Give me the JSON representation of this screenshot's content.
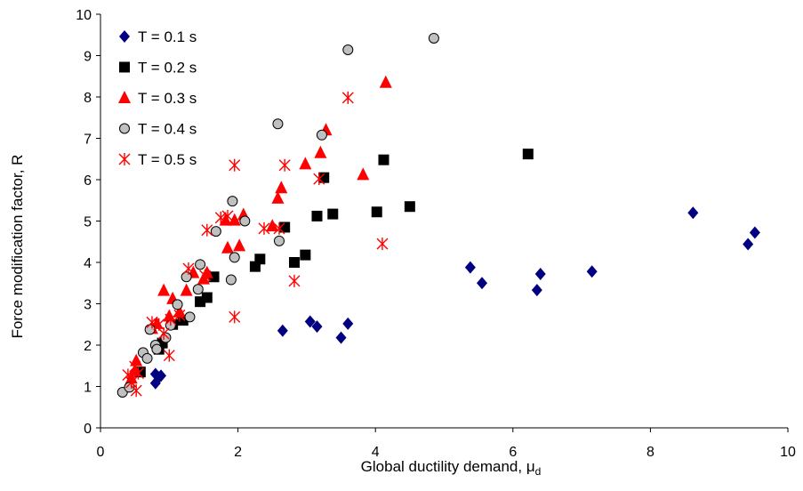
{
  "chart_data": {
    "type": "scatter",
    "xlabel": "Global ductility demand, ",
    "xlabel_symbol": "μ",
    "xlabel_subscript": "d",
    "ylabel": "Force modification factor, R",
    "xlim": [
      0,
      10
    ],
    "ylim": [
      0,
      10
    ],
    "xticks": [
      "0",
      "2",
      "4",
      "6",
      "8",
      "10"
    ],
    "yticks": [
      "0",
      "1",
      "2",
      "3",
      "4",
      "5",
      "6",
      "7",
      "8",
      "9",
      "10"
    ],
    "grid": false,
    "legend_position": "top-left",
    "series": [
      {
        "name": "T = 0.1 s",
        "marker": "diamond",
        "color": "#000080",
        "points": [
          [
            0.8,
            1.08
          ],
          [
            0.8,
            1.3
          ],
          [
            0.85,
            1.22
          ],
          [
            0.88,
            1.26
          ],
          [
            2.65,
            2.35
          ],
          [
            3.05,
            2.57
          ],
          [
            3.15,
            2.45
          ],
          [
            3.5,
            2.18
          ],
          [
            3.6,
            2.52
          ],
          [
            5.38,
            3.88
          ],
          [
            5.55,
            3.5
          ],
          [
            6.35,
            3.33
          ],
          [
            6.4,
            3.72
          ],
          [
            7.15,
            3.78
          ],
          [
            8.62,
            5.2
          ],
          [
            9.42,
            4.44
          ],
          [
            9.52,
            4.72
          ]
        ]
      },
      {
        "name": "T = 0.2 s",
        "marker": "square",
        "color": "#000000",
        "points": [
          [
            0.58,
            1.35
          ],
          [
            0.85,
            1.9
          ],
          [
            0.9,
            2.05
          ],
          [
            1.05,
            2.5
          ],
          [
            1.2,
            2.6
          ],
          [
            1.45,
            3.05
          ],
          [
            1.55,
            3.15
          ],
          [
            1.65,
            3.65
          ],
          [
            2.25,
            3.9
          ],
          [
            2.32,
            4.08
          ],
          [
            2.68,
            4.85
          ],
          [
            2.82,
            4.0
          ],
          [
            2.98,
            4.18
          ],
          [
            3.15,
            5.12
          ],
          [
            3.25,
            6.05
          ],
          [
            3.38,
            5.17
          ],
          [
            4.02,
            5.22
          ],
          [
            4.12,
            6.48
          ],
          [
            4.5,
            5.35
          ],
          [
            6.22,
            6.62
          ]
        ]
      },
      {
        "name": "T = 0.3 s",
        "marker": "triangle",
        "color": "#ff0000",
        "points": [
          [
            0.45,
            1.2
          ],
          [
            0.5,
            1.38
          ],
          [
            0.52,
            1.62
          ],
          [
            0.75,
            2.4
          ],
          [
            0.82,
            2.52
          ],
          [
            0.92,
            3.32
          ],
          [
            1.0,
            2.7
          ],
          [
            1.05,
            3.12
          ],
          [
            1.15,
            2.8
          ],
          [
            1.25,
            3.32
          ],
          [
            1.35,
            3.75
          ],
          [
            1.5,
            3.6
          ],
          [
            1.55,
            3.75
          ],
          [
            1.85,
            4.35
          ],
          [
            1.82,
            5.02
          ],
          [
            1.95,
            5.02
          ],
          [
            2.02,
            4.4
          ],
          [
            2.08,
            5.15
          ],
          [
            2.5,
            4.88
          ],
          [
            2.58,
            5.55
          ],
          [
            2.63,
            5.8
          ],
          [
            2.98,
            6.38
          ],
          [
            3.2,
            6.65
          ],
          [
            3.28,
            7.2
          ],
          [
            3.82,
            6.12
          ],
          [
            4.15,
            8.35
          ]
        ]
      },
      {
        "name": "T = 0.4 s",
        "marker": "circle",
        "color": "#c0c0c0",
        "points": [
          [
            0.32,
            0.86
          ],
          [
            0.42,
            0.98
          ],
          [
            0.62,
            1.82
          ],
          [
            0.68,
            1.68
          ],
          [
            0.72,
            2.38
          ],
          [
            0.8,
            2.0
          ],
          [
            0.82,
            1.9
          ],
          [
            0.95,
            2.18
          ],
          [
            1.02,
            2.48
          ],
          [
            1.12,
            2.98
          ],
          [
            1.25,
            3.65
          ],
          [
            1.3,
            2.68
          ],
          [
            1.42,
            3.35
          ],
          [
            1.45,
            3.95
          ],
          [
            1.68,
            4.75
          ],
          [
            1.9,
            3.58
          ],
          [
            1.92,
            5.48
          ],
          [
            1.95,
            4.12
          ],
          [
            2.1,
            5.0
          ],
          [
            2.58,
            7.35
          ],
          [
            2.6,
            4.52
          ],
          [
            3.22,
            7.08
          ],
          [
            3.6,
            9.14
          ],
          [
            4.85,
            9.42
          ]
        ]
      },
      {
        "name": "T = 0.5 s",
        "marker": "star",
        "color": "#ff0000",
        "points": [
          [
            0.4,
            1.28
          ],
          [
            0.45,
            1.1
          ],
          [
            0.5,
            1.48
          ],
          [
            0.52,
            0.9
          ],
          [
            0.55,
            1.32
          ],
          [
            0.75,
            2.55
          ],
          [
            0.85,
            2.5
          ],
          [
            0.92,
            2.28
          ],
          [
            1.0,
            1.75
          ],
          [
            1.02,
            2.62
          ],
          [
            1.15,
            2.72
          ],
          [
            1.28,
            3.85
          ],
          [
            1.52,
            3.68
          ],
          [
            1.55,
            4.78
          ],
          [
            1.75,
            5.08
          ],
          [
            1.85,
            5.12
          ],
          [
            1.95,
            2.68
          ],
          [
            1.95,
            6.35
          ],
          [
            2.38,
            4.82
          ],
          [
            2.6,
            4.82
          ],
          [
            2.68,
            6.35
          ],
          [
            2.82,
            3.55
          ],
          [
            3.18,
            6.02
          ],
          [
            3.6,
            7.98
          ],
          [
            4.1,
            4.45
          ]
        ]
      }
    ]
  }
}
